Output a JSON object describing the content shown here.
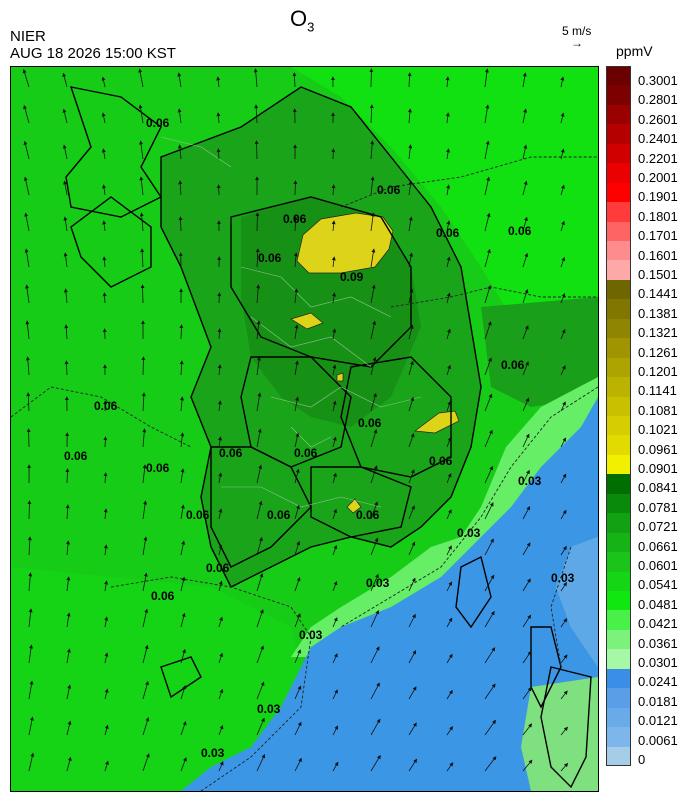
{
  "header": {
    "title_main": "O",
    "title_sub": "3",
    "agency": "NIER",
    "datetime": "AUG 18 2026 15:00 KST",
    "wind_reference": "5 m/s",
    "wind_reference_arrow": "→",
    "unit": "ppmV"
  },
  "map": {
    "pollutant": "O3",
    "contour_labels": [
      "0.06",
      "0.06",
      "0.06",
      "0.06",
      "0.06",
      "0.06",
      "0.06",
      "0.06",
      "0.06",
      "0.06",
      "0.06",
      "0.06",
      "0.06",
      "0.06",
      "0.06",
      "0.06",
      "0.06",
      "0.06",
      "0.06",
      "0.09",
      "0.03",
      "0.03",
      "0.03",
      "0.03",
      "0.03",
      "0.03",
      "0.03"
    ],
    "colors": {
      "sea_low": "#3c96e6",
      "mid_green": "#17cc17",
      "bright_green": "#11e011",
      "dark_green": "#189818",
      "light_green": "#66ee66",
      "yellow": "#ddd41a"
    }
  },
  "colorbar": {
    "labels": [
      "0.3001",
      "0.2801",
      "0.2601",
      "0.2401",
      "0.2201",
      "0.2001",
      "0.1901",
      "0.1801",
      "0.1701",
      "0.1601",
      "0.1501",
      "0.1441",
      "0.1381",
      "0.1321",
      "0.1261",
      "0.1201",
      "0.1141",
      "0.1081",
      "0.1021",
      "0.0961",
      "0.0901",
      "0.0841",
      "0.0781",
      "0.0721",
      "0.0661",
      "0.0601",
      "0.0541",
      "0.0481",
      "0.0421",
      "0.0361",
      "0.0301",
      "0.0241",
      "0.0181",
      "0.0121",
      "0.0061",
      "0"
    ],
    "colors": [
      "#6b0000",
      "#7d0000",
      "#990000",
      "#b50000",
      "#d00000",
      "#ea0000",
      "#ff0000",
      "#ff3b3b",
      "#ff6464",
      "#ff8c8c",
      "#ffa8a8",
      "#6e6600",
      "#807600",
      "#908500",
      "#a09500",
      "#aea400",
      "#bcb300",
      "#c9c000",
      "#d6ce00",
      "#e2da00",
      "#f0f000",
      "#006e00",
      "#0a8a0a",
      "#12a112",
      "#16b316",
      "#1ac41a",
      "#14d614",
      "#10e610",
      "#48f048",
      "#7cf27c",
      "#a6f7a6",
      "#3a8ee6",
      "#5a9ee8",
      "#6aaae8",
      "#7cb6ea",
      "#a6cde8"
    ]
  }
}
